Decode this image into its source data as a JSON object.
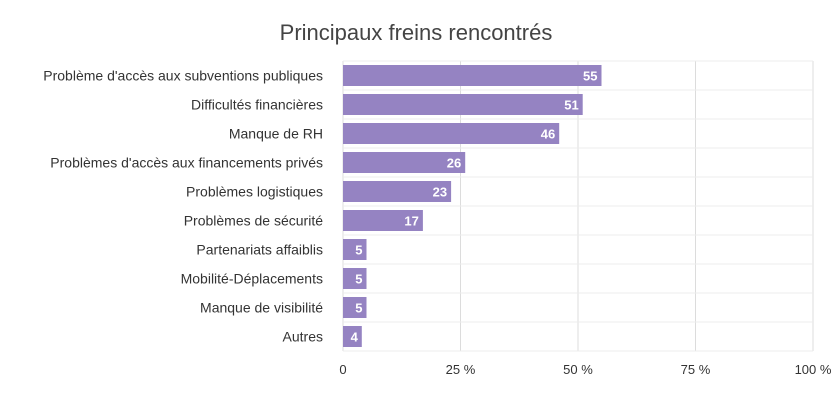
{
  "chart_data": {
    "type": "bar",
    "orientation": "horizontal",
    "title": "Principaux freins rencontrés",
    "categories": [
      "Problème d'accès aux subventions publiques",
      "Difficultés financières",
      "Manque de RH",
      "Problèmes d'accès aux financements privés",
      "Problèmes logistiques",
      "Problèmes de sécurité",
      "Partenariats affaiblis",
      "Mobilité-Déplacements",
      "Manque de visibilité",
      "Autres"
    ],
    "values": [
      55,
      51,
      46,
      26,
      23,
      17,
      5,
      5,
      5,
      4
    ],
    "data_labels": [
      "55",
      "51",
      "46",
      "26",
      "23",
      "17",
      "5",
      "5",
      "5",
      "4"
    ],
    "xlim": [
      0,
      100
    ],
    "x_ticks": [
      0,
      25,
      50,
      75,
      100
    ],
    "x_tick_labels": [
      "0",
      "25 %",
      "50 %",
      "75 %",
      "100 %"
    ],
    "grid": true,
    "legend": "none",
    "colors": {
      "bar": "#9583c2",
      "grid": "#dcdcdc",
      "text": "#333333",
      "title": "#444444",
      "data_label": "#ffffff"
    }
  }
}
